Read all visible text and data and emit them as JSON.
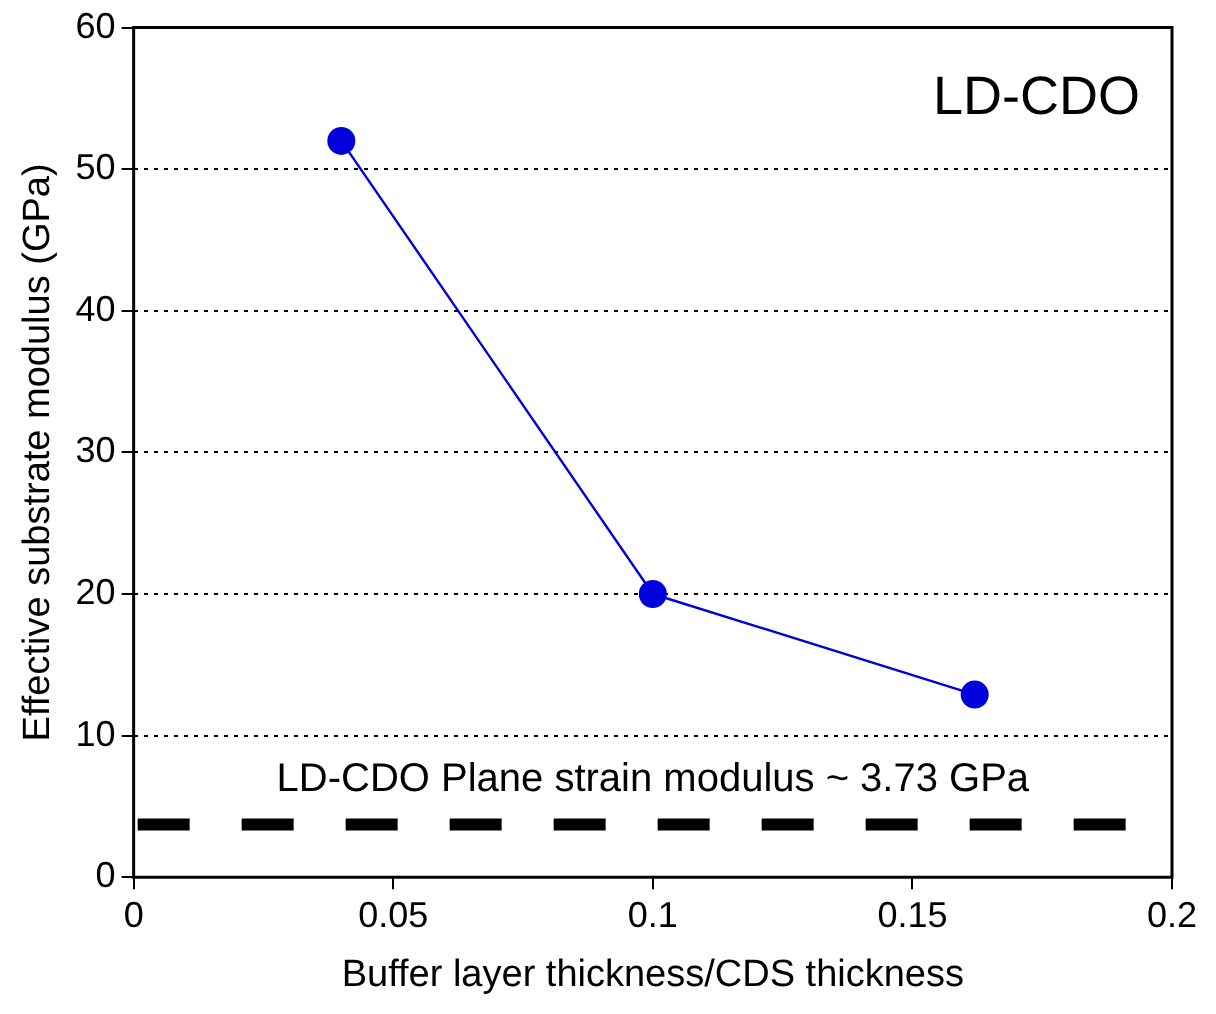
{
  "chart_data": {
    "type": "line",
    "xlabel": "Buffer layer thickness/CDS thickness",
    "ylabel": "Effective substrate modulus (GPa)",
    "x": [
      0.04,
      0.1,
      0.162
    ],
    "series": [
      {
        "color": "#0000dd",
        "values": [
          52,
          20,
          12.9
        ]
      }
    ],
    "xlim": [
      0,
      0.2
    ],
    "xticks": [
      0,
      0.05,
      0.1,
      0.15,
      0.2
    ],
    "ylim": [
      0,
      60
    ],
    "yticks": [
      0,
      10,
      20,
      30,
      40,
      50,
      60
    ],
    "grid": "y",
    "legend": false,
    "marker": "circle",
    "line_style": "solid",
    "annotations": [
      "LD-CDO"
    ],
    "ref_lines": [
      {
        "axis": "y",
        "value": 3.73,
        "label": "LD-CDO Plane strain modulus ~ 3.73 GPa",
        "color": "#000000",
        "line_style": "dashed"
      }
    ]
  }
}
